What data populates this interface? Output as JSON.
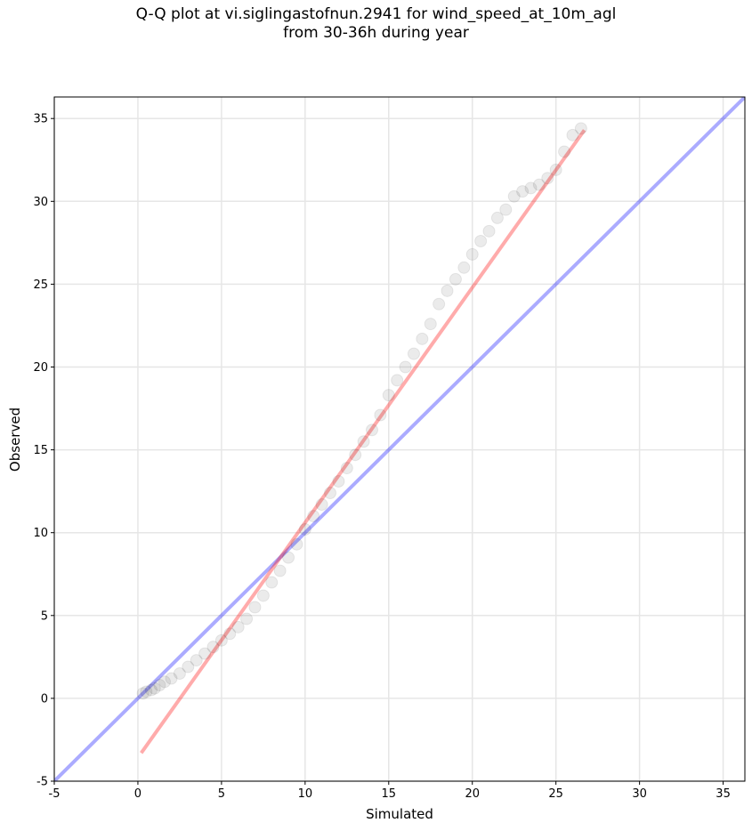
{
  "chart_data": {
    "type": "scatter",
    "title": [
      "Q-Q plot at vi.siglingastofnun.2941 for wind_speed_at_10m_agl",
      "from 30-36h during year"
    ],
    "xlabel": "Simulated",
    "ylabel": "Observed",
    "xlim": [
      -5,
      36.3
    ],
    "ylim": [
      -5,
      36.3
    ],
    "xticks": [
      -5,
      0,
      5,
      10,
      15,
      20,
      25,
      30,
      35
    ],
    "yticks": [
      -5,
      0,
      5,
      10,
      15,
      20,
      25,
      30,
      35
    ],
    "grid": true,
    "series": [
      {
        "marker": "circle",
        "color": "#000000",
        "alpha": 0.08,
        "points": [
          [
            0.3,
            0.3
          ],
          [
            0.5,
            0.4
          ],
          [
            0.8,
            0.5
          ],
          [
            1.0,
            0.6
          ],
          [
            1.3,
            0.8
          ],
          [
            1.6,
            1.0
          ],
          [
            2.0,
            1.2
          ],
          [
            2.5,
            1.5
          ],
          [
            3.0,
            1.9
          ],
          [
            3.5,
            2.3
          ],
          [
            4.0,
            2.7
          ],
          [
            4.5,
            3.1
          ],
          [
            5.0,
            3.5
          ],
          [
            5.5,
            3.9
          ],
          [
            6.0,
            4.3
          ],
          [
            6.5,
            4.8
          ],
          [
            7.0,
            5.5
          ],
          [
            7.5,
            6.2
          ],
          [
            8.0,
            7.0
          ],
          [
            8.5,
            7.7
          ],
          [
            9.0,
            8.5
          ],
          [
            9.5,
            9.3
          ],
          [
            10.0,
            10.2
          ],
          [
            10.5,
            11.0
          ],
          [
            11.0,
            11.7
          ],
          [
            11.5,
            12.4
          ],
          [
            12.0,
            13.1
          ],
          [
            12.5,
            13.9
          ],
          [
            13.0,
            14.7
          ],
          [
            13.5,
            15.5
          ],
          [
            14.0,
            16.2
          ],
          [
            14.5,
            17.1
          ],
          [
            15.0,
            18.3
          ],
          [
            15.5,
            19.2
          ],
          [
            16.0,
            20.0
          ],
          [
            16.5,
            20.8
          ],
          [
            17.0,
            21.7
          ],
          [
            17.5,
            22.6
          ],
          [
            18.0,
            23.8
          ],
          [
            18.5,
            24.6
          ],
          [
            19.0,
            25.3
          ],
          [
            19.5,
            26.0
          ],
          [
            20.0,
            26.8
          ],
          [
            20.5,
            27.6
          ],
          [
            21.0,
            28.2
          ],
          [
            21.5,
            29.0
          ],
          [
            22.0,
            29.5
          ],
          [
            22.5,
            30.3
          ],
          [
            23.0,
            30.6
          ],
          [
            23.5,
            30.8
          ],
          [
            24.0,
            31.0
          ],
          [
            24.5,
            31.4
          ],
          [
            25.0,
            31.9
          ],
          [
            25.5,
            33.0
          ],
          [
            26.0,
            34.0
          ],
          [
            26.5,
            34.4
          ]
        ]
      }
    ],
    "reference_lines": [
      {
        "name": "1:1",
        "color": "#0000ff",
        "alpha": 0.33,
        "points": [
          [
            -5,
            -5
          ],
          [
            36.3,
            36.3
          ]
        ]
      },
      {
        "name": "fit",
        "color": "#ff0000",
        "alpha": 0.33,
        "points": [
          [
            0.2,
            -3.3
          ],
          [
            26.7,
            34.3
          ]
        ]
      }
    ]
  }
}
